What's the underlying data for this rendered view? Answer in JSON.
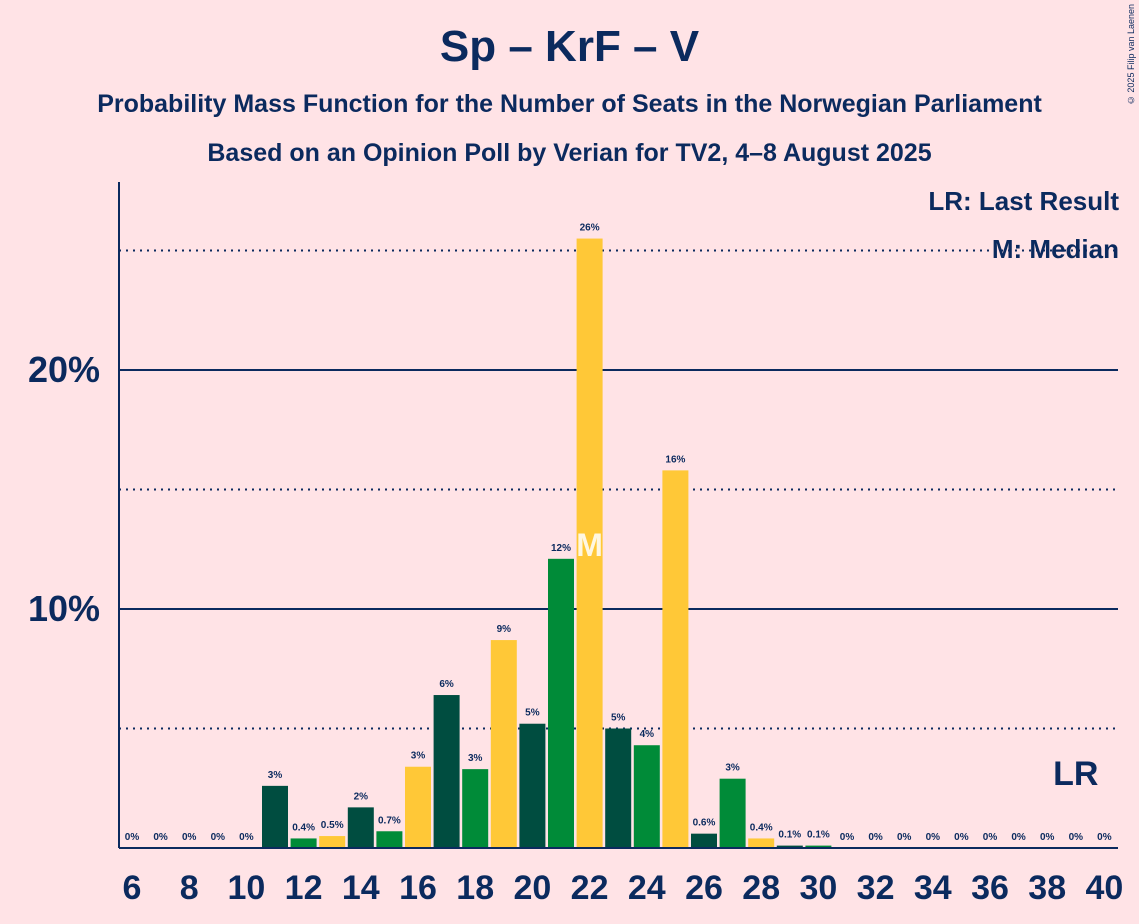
{
  "title": "Sp – KrF – V",
  "subtitle1": "Probability Mass Function for the Number of Seats in the Norwegian Parliament",
  "subtitle2": "Based on an Opinion Poll by Verian for TV2, 4–8 August 2025",
  "copyright": "© 2025 Filip van Laenen",
  "legend": {
    "lr": "LR: Last Result",
    "median": "M: Median"
  },
  "colors": {
    "background": "#FFE3E6",
    "text": "#0B2A5E",
    "dark_green": "#004D40",
    "green": "#008B38",
    "yellow": "#FFC837"
  },
  "chart_data": {
    "type": "bar",
    "x": [
      6,
      7,
      8,
      9,
      10,
      11,
      12,
      13,
      14,
      15,
      16,
      17,
      18,
      19,
      20,
      21,
      22,
      23,
      24,
      25,
      26,
      27,
      28,
      29,
      30,
      31,
      32,
      33,
      34,
      35,
      36,
      37,
      38,
      39,
      40
    ],
    "values": [
      0,
      0,
      0,
      0,
      0,
      2.6,
      0.4,
      0.5,
      1.7,
      0.7,
      3.4,
      6.4,
      3.3,
      8.7,
      5.2,
      12.1,
      25.5,
      5.0,
      4.3,
      15.8,
      0.6,
      2.9,
      0.4,
      0.1,
      0.1,
      0,
      0,
      0,
      0,
      0,
      0,
      0,
      0,
      0,
      0
    ],
    "labels": [
      "0%",
      "0%",
      "0%",
      "0%",
      "0%",
      "3%",
      "0.4%",
      "0.5%",
      "2%",
      "0.7%",
      "3%",
      "6%",
      "3%",
      "9%",
      "5%",
      "12%",
      "26%",
      "5%",
      "4%",
      "16%",
      "0.6%",
      "3%",
      "0.4%",
      "0.1%",
      "0.1%",
      "0%",
      "0%",
      "0%",
      "0%",
      "0%",
      "0%",
      "0%",
      "0%",
      "0%",
      "0%"
    ],
    "bar_colors": [
      "#004D40",
      "#008B38",
      "#FFC837",
      "#004D40",
      "#008B38",
      "#004D40",
      "#008B38",
      "#FFC837",
      "#004D40",
      "#008B38",
      "#FFC837",
      "#004D40",
      "#008B38",
      "#FFC837",
      "#004D40",
      "#008B38",
      "#FFC837",
      "#004D40",
      "#008B38",
      "#FFC837",
      "#004D40",
      "#008B38",
      "#FFC837",
      "#004D40",
      "#008B38",
      "#FFC837",
      "#004D40",
      "#008B38",
      "#FFC837",
      "#004D40",
      "#008B38",
      "#FFC837",
      "#004D40",
      "#008B38",
      "#FFC837"
    ],
    "xticks": [
      6,
      8,
      10,
      12,
      14,
      16,
      18,
      20,
      22,
      24,
      26,
      28,
      30,
      32,
      34,
      36,
      38,
      40
    ],
    "xtick_labels": [
      "6",
      "8",
      "10",
      "12",
      "14",
      "16",
      "18",
      "20",
      "22",
      "24",
      "26",
      "28",
      "30",
      "32",
      "34",
      "36",
      "38",
      "40"
    ],
    "yticks": [
      10,
      20
    ],
    "ytick_labels": [
      "10%",
      "20%"
    ],
    "dotted_gridlines": [
      5,
      15,
      25
    ],
    "ylim": [
      0,
      27.7
    ],
    "median": 22,
    "median_label": "M",
    "last_result": 39,
    "last_result_label": "LR"
  }
}
